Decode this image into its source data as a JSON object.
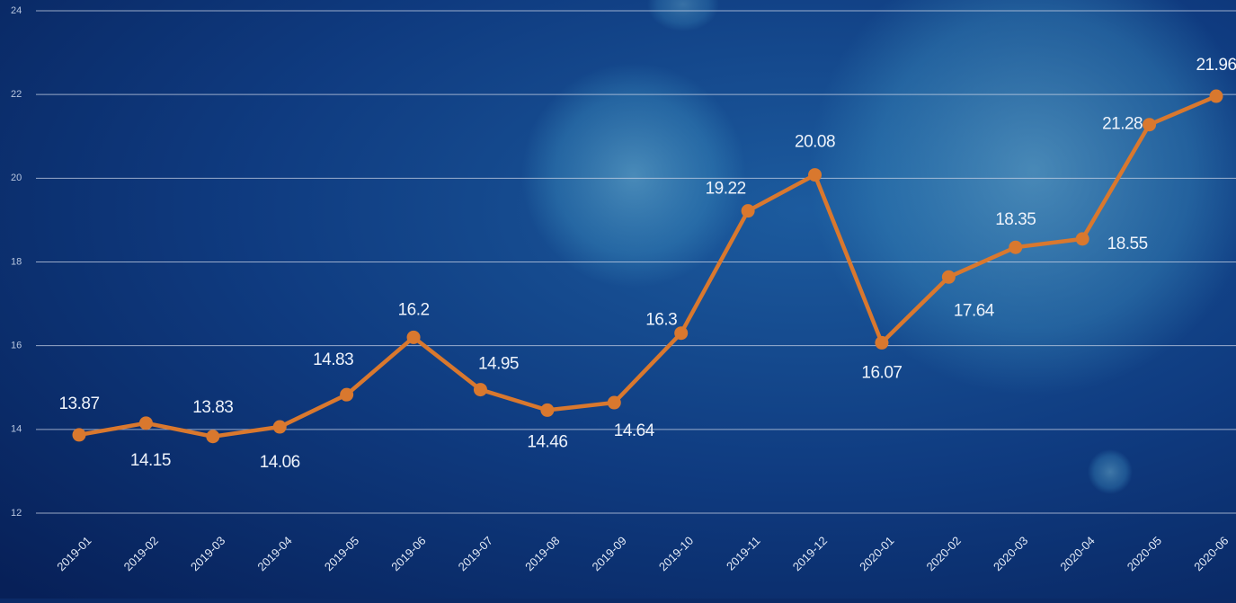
{
  "chart_data": {
    "type": "line",
    "x": [
      "2019-01",
      "2019-02",
      "2019-03",
      "2019-04",
      "2019-05",
      "2019-06",
      "2019-07",
      "2019-08",
      "2019-09",
      "2019-10",
      "2019-11",
      "2019-12",
      "2020-01",
      "2020-02",
      "2020-03",
      "2020-04",
      "2020-05",
      "2020-06"
    ],
    "series": [
      {
        "color": "#d9782e",
        "values": [
          13.87,
          14.15,
          13.83,
          14.06,
          14.83,
          16.2,
          14.95,
          14.46,
          14.64,
          16.3,
          19.22,
          20.08,
          16.07,
          17.64,
          18.35,
          18.55,
          21.28,
          21.96
        ]
      }
    ],
    "ylim": [
      12,
      24
    ],
    "yticks": [
      12,
      14,
      16,
      18,
      20,
      22,
      24
    ],
    "grid": true
  }
}
